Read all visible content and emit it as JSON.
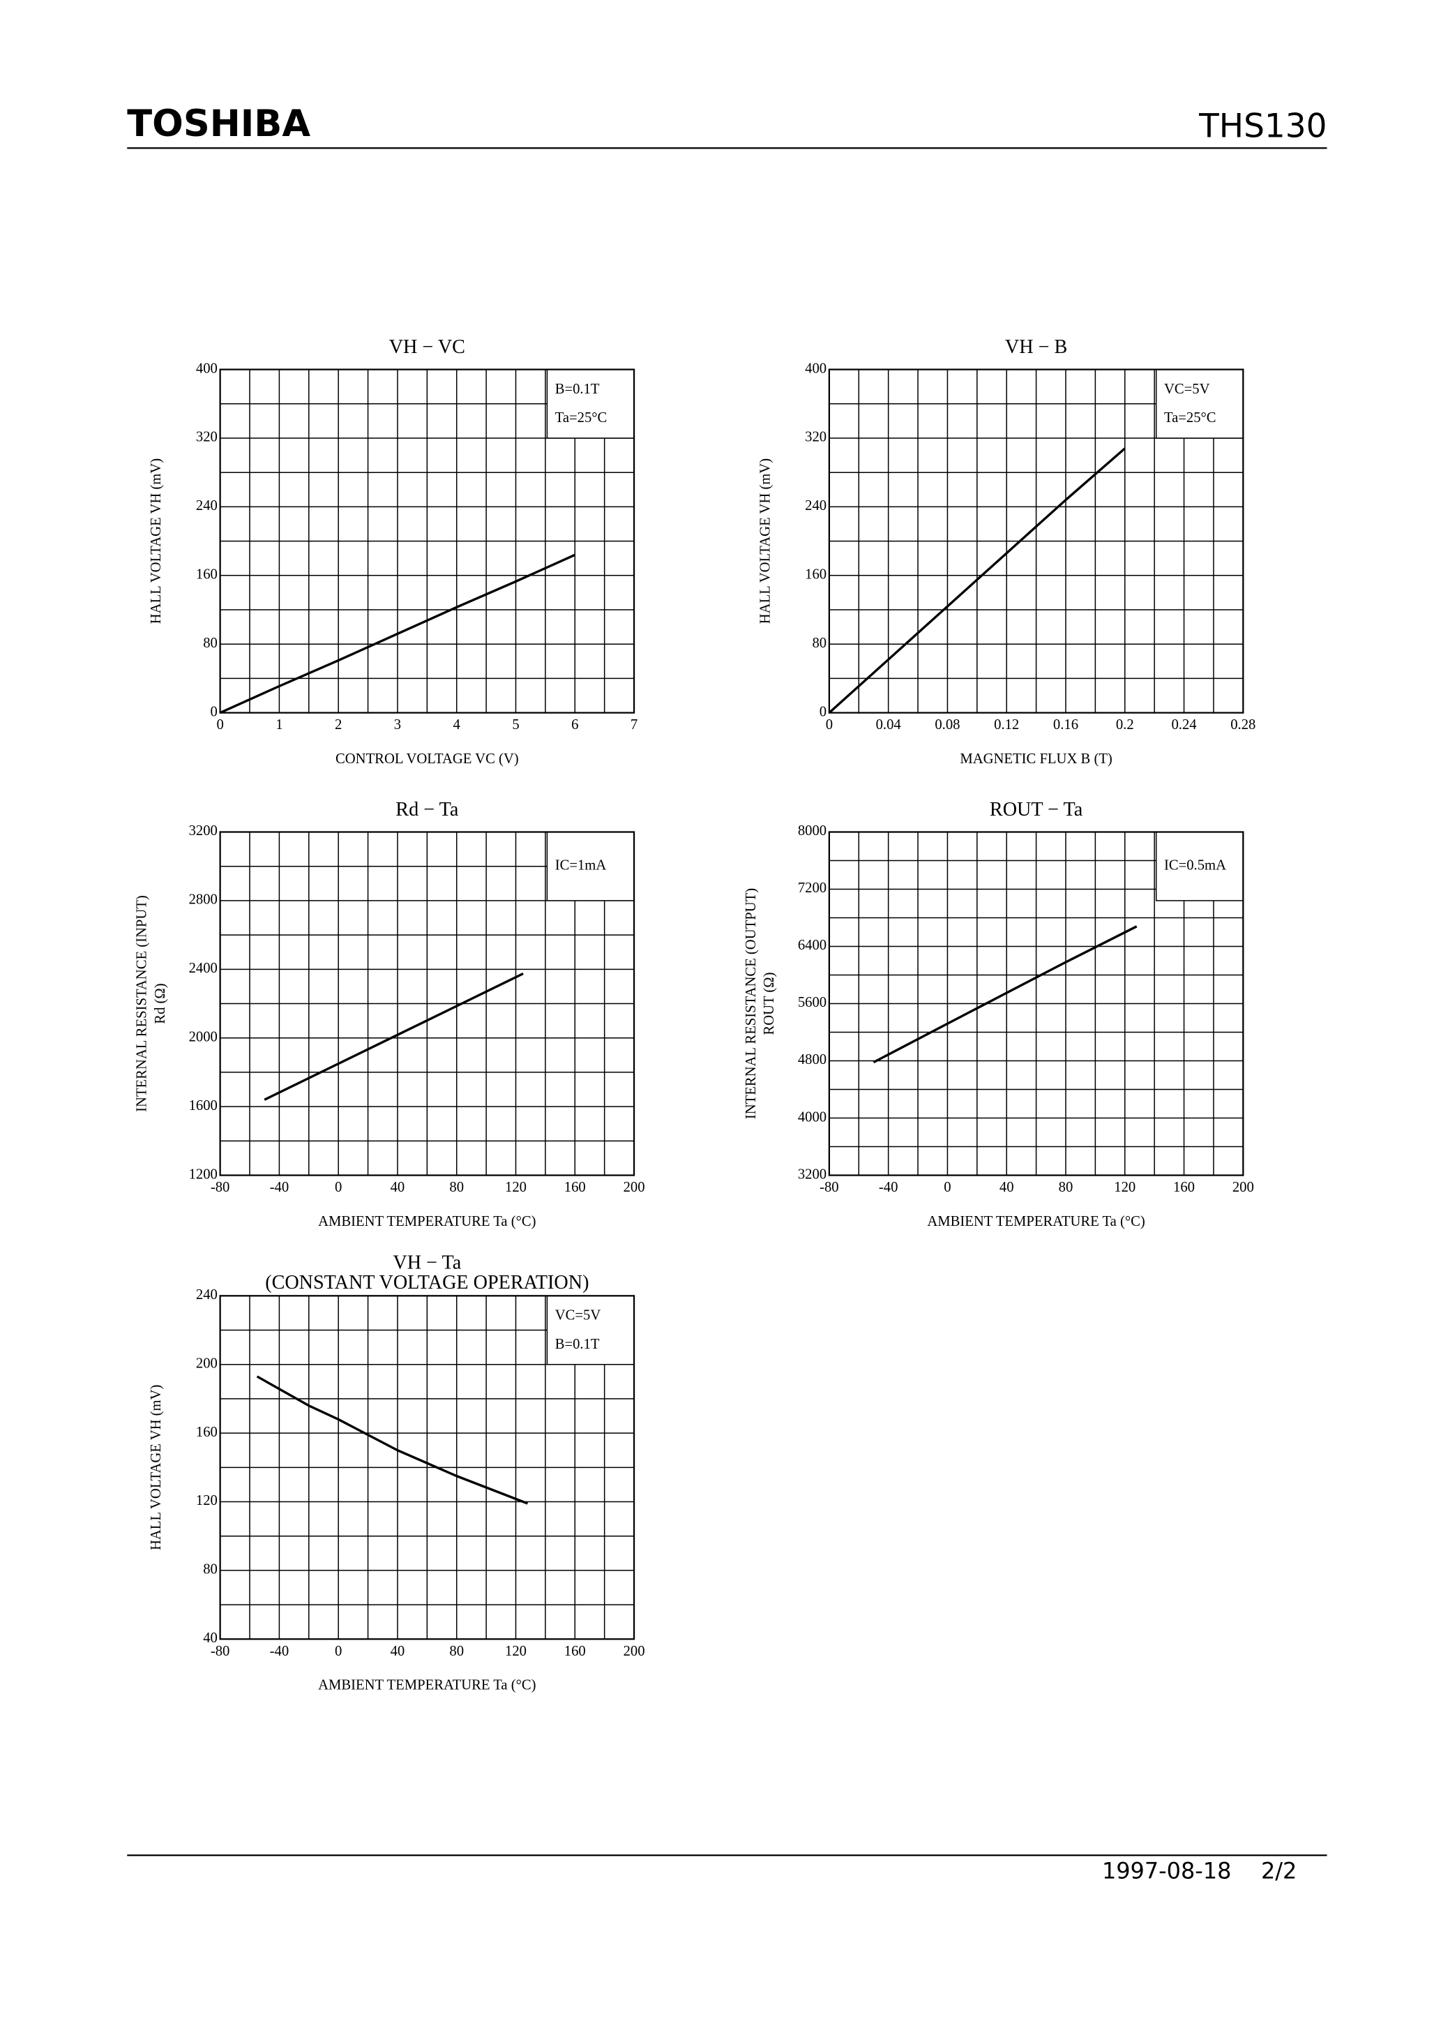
{
  "header": {
    "brand": "TOSHIBA",
    "part": "THS130"
  },
  "footer": {
    "date": "1997-08-18",
    "page": "2/2"
  },
  "chart_data": [
    {
      "type": "line",
      "title": "VH − VC",
      "xlabel": "CONTROL VOLTAGE VC (V)",
      "ylabel": [
        "HALL VOLTAGE VH (mV)"
      ],
      "legend": [
        "B=0.1T",
        "Ta=25°C"
      ],
      "legend_position": "upper right",
      "grid": true,
      "color": "#000000",
      "xlim": [
        0,
        7
      ],
      "xticks": [
        0,
        1,
        2,
        3,
        4,
        5,
        6,
        7
      ],
      "ylim": [
        0,
        400
      ],
      "yticks": [
        0,
        80,
        160,
        240,
        320,
        400
      ],
      "x": [
        0,
        1,
        2,
        3,
        4,
        5,
        6
      ],
      "values": [
        0,
        31,
        61,
        92,
        123,
        153,
        184
      ]
    },
    {
      "type": "line",
      "title": "VH − B",
      "xlabel": "MAGNETIC FLUX B (T)",
      "ylabel": [
        "HALL VOLTAGE VH (mV)"
      ],
      "legend": [
        "VC=5V",
        "Ta=25°C"
      ],
      "legend_position": "upper right",
      "grid": true,
      "color": "#000000",
      "xlim": [
        0,
        0.28
      ],
      "xticks": [
        0,
        0.04,
        0.08,
        0.12,
        0.16,
        0.2,
        0.24,
        0.28
      ],
      "ylim": [
        0,
        400
      ],
      "yticks": [
        0,
        80,
        160,
        240,
        320,
        400
      ],
      "x": [
        0,
        0.04,
        0.08,
        0.12,
        0.16,
        0.2
      ],
      "values": [
        0,
        62,
        124,
        186,
        248,
        308
      ]
    },
    {
      "type": "line",
      "title": "Rd − Ta",
      "xlabel": "AMBIENT TEMPERATURE Ta (°C)",
      "ylabel": [
        "INTERNAL RESISTANCE (INPUT)",
        "Rd (Ω)"
      ],
      "legend": [
        "IC=1mA"
      ],
      "legend_position": "upper right",
      "grid": true,
      "color": "#000000",
      "xlim": [
        -80,
        200
      ],
      "xticks": [
        -80,
        -40,
        0,
        40,
        80,
        120,
        160,
        200
      ],
      "ylim": [
        1200,
        3200
      ],
      "yticks": [
        1200,
        1600,
        2000,
        2400,
        2800,
        3200
      ],
      "x": [
        -50,
        0,
        40,
        80,
        125
      ],
      "values": [
        1640,
        1850,
        2018,
        2186,
        2375
      ]
    },
    {
      "type": "line",
      "title": "ROUT − Ta",
      "xlabel": "AMBIENT TEMPERATURE Ta (°C)",
      "ylabel": [
        "INTERNAL RESISTANCE (OUTPUT)",
        "ROUT (Ω)"
      ],
      "legend": [
        "IC=0.5mA"
      ],
      "legend_position": "upper right",
      "grid": true,
      "color": "#000000",
      "xlim": [
        -80,
        200
      ],
      "xticks": [
        -80,
        -40,
        0,
        40,
        80,
        120,
        160,
        200
      ],
      "ylim": [
        3200,
        8000
      ],
      "yticks": [
        3200,
        4000,
        4800,
        5600,
        6400,
        7200,
        8000
      ],
      "x": [
        -50,
        0,
        40,
        80,
        128
      ],
      "values": [
        4780,
        5320,
        5750,
        6180,
        6680
      ]
    },
    {
      "type": "line",
      "title": "VH − Ta",
      "subtitle": "(CONSTANT VOLTAGE OPERATION)",
      "xlabel": "AMBIENT TEMPERATURE Ta (°C)",
      "ylabel": [
        "HALL VOLTAGE VH (mV)"
      ],
      "legend": [
        "VC=5V",
        "B=0.1T"
      ],
      "legend_position": "upper right",
      "grid": true,
      "color": "#000000",
      "xlim": [
        -80,
        200
      ],
      "xticks": [
        -80,
        -40,
        0,
        40,
        80,
        120,
        160,
        200
      ],
      "ylim": [
        40,
        240
      ],
      "yticks": [
        40,
        80,
        120,
        160,
        200,
        240
      ],
      "x": [
        -55,
        -20,
        0,
        40,
        80,
        128
      ],
      "values": [
        193,
        176,
        168,
        150,
        135,
        119
      ]
    }
  ]
}
